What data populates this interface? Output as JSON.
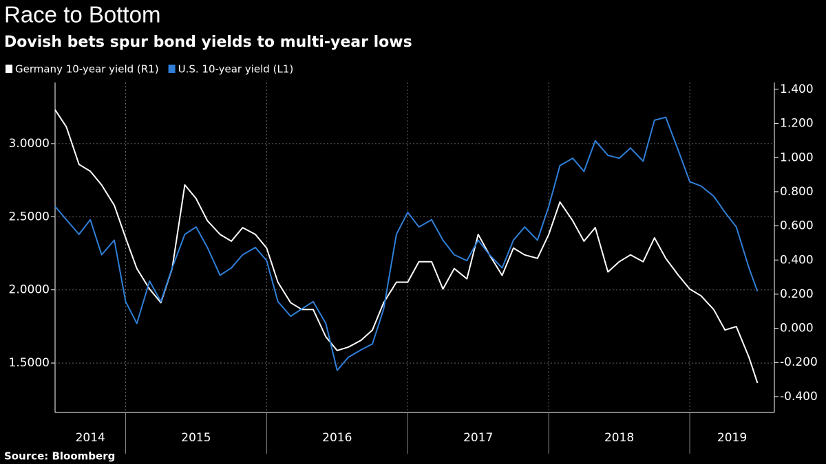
{
  "chart_data": {
    "type": "line",
    "title": "Race to Bottom",
    "subtitle": "Dovish bets spur bond yields to multi-year lows",
    "source": "Source: Bloomberg",
    "x": [
      2014.5,
      2014.58,
      2014.67,
      2014.75,
      2014.83,
      2014.92,
      2015.0,
      2015.08,
      2015.17,
      2015.25,
      2015.33,
      2015.42,
      2015.5,
      2015.58,
      2015.67,
      2015.75,
      2015.83,
      2015.92,
      2016.0,
      2016.08,
      2016.17,
      2016.25,
      2016.33,
      2016.42,
      2016.5,
      2016.58,
      2016.67,
      2016.75,
      2016.83,
      2016.92,
      2017.0,
      2017.08,
      2017.17,
      2017.25,
      2017.33,
      2017.42,
      2017.5,
      2017.58,
      2017.67,
      2017.75,
      2017.83,
      2017.92,
      2018.0,
      2018.08,
      2018.17,
      2018.25,
      2018.33,
      2018.42,
      2018.5,
      2018.58,
      2018.67,
      2018.75,
      2018.83,
      2018.92,
      2019.0,
      2019.08,
      2019.17,
      2019.25,
      2019.33,
      2019.42,
      2019.48
    ],
    "xlim": [
      2014.5,
      2019.6
    ],
    "xticks": [
      2014,
      2015,
      2016,
      2017,
      2018,
      2019
    ],
    "ylim": [
      1.162,
      3.418
    ],
    "yticks": [
      {
        "value": 1.5,
        "label": "1.5000"
      },
      {
        "value": 2,
        "label": "2.0000"
      },
      {
        "value": 2.5,
        "label": "2.5000"
      },
      {
        "value": 3,
        "label": "3.0000"
      }
    ],
    "y2lim": [
      -0.493,
      1.44
    ],
    "y2ticks": [
      {
        "value": -0.4,
        "label": "-0.400"
      },
      {
        "value": -0.2,
        "label": "-0.200"
      },
      {
        "value": 0,
        "label": "0.000"
      },
      {
        "value": 0.2,
        "label": "0.200"
      },
      {
        "value": 0.4,
        "label": "0.400"
      },
      {
        "value": 0.6,
        "label": "0.600"
      },
      {
        "value": 0.8,
        "label": "0.800"
      },
      {
        "value": 1,
        "label": "1.000"
      },
      {
        "value": 1.2,
        "label": "1.200"
      },
      {
        "value": 1.4,
        "label": "1.400"
      }
    ],
    "grid": true,
    "series": [
      {
        "name": "Germany 10-year yield (R1)",
        "color": "#ffffff",
        "axis": "y2",
        "values": [
          1.28,
          1.18,
          0.96,
          0.92,
          0.84,
          0.72,
          0.53,
          0.35,
          0.23,
          0.15,
          0.35,
          0.84,
          0.76,
          0.63,
          0.55,
          0.51,
          0.59,
          0.55,
          0.47,
          0.27,
          0.15,
          0.11,
          0.11,
          -0.05,
          -0.13,
          -0.11,
          -0.07,
          -0.01,
          0.15,
          0.27,
          0.27,
          0.39,
          0.39,
          0.23,
          0.35,
          0.29,
          0.55,
          0.43,
          0.31,
          0.47,
          0.43,
          0.41,
          0.55,
          0.74,
          0.63,
          0.51,
          0.59,
          0.33,
          0.39,
          0.43,
          0.39,
          0.53,
          0.41,
          0.31,
          0.23,
          0.19,
          0.11,
          -0.01,
          0.01,
          -0.17,
          -0.32
        ]
      },
      {
        "name": "U.S. 10-year yield (L1)",
        "color": "#2f7fd8",
        "values": [
          2.57,
          2.48,
          2.38,
          2.48,
          2.24,
          2.34,
          1.92,
          1.77,
          2.06,
          1.92,
          2.15,
          2.38,
          2.43,
          2.29,
          2.1,
          2.15,
          2.24,
          2.29,
          2.2,
          1.92,
          1.82,
          1.87,
          1.92,
          1.77,
          1.45,
          1.54,
          1.59,
          1.63,
          1.87,
          2.38,
          2.53,
          2.43,
          2.48,
          2.34,
          2.24,
          2.2,
          2.34,
          2.24,
          2.15,
          2.34,
          2.43,
          2.34,
          2.57,
          2.85,
          2.9,
          2.81,
          3.02,
          2.92,
          2.9,
          2.97,
          2.88,
          3.16,
          3.18,
          2.95,
          2.74,
          2.71,
          2.64,
          2.53,
          2.43,
          2.15,
          1.99
        ]
      }
    ]
  }
}
